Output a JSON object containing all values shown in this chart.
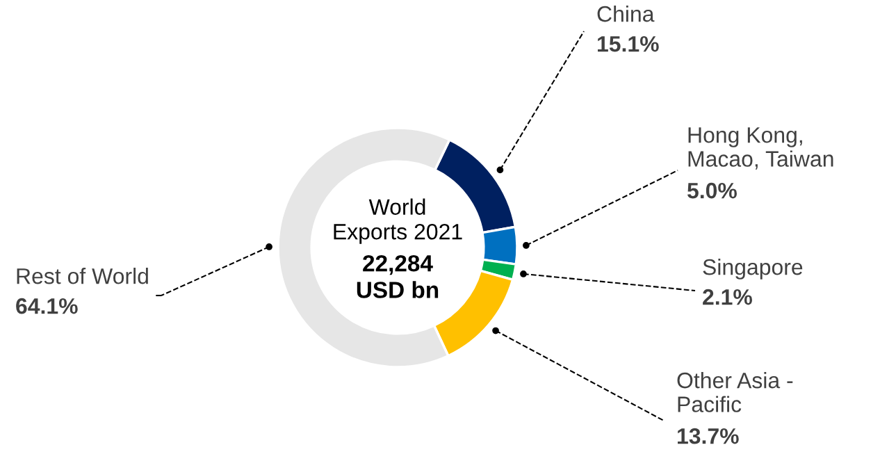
{
  "chart_data": {
    "type": "donut",
    "categories": [
      "China",
      "Hong Kong,\nMacao, Taiwan",
      "Singapore",
      "Other Asia -\nPacific",
      "Rest of World"
    ],
    "values": [
      15.1,
      5.0,
      2.1,
      13.7,
      64.1
    ],
    "colors": [
      "#002060",
      "#0070c0",
      "#00b050",
      "#ffc000",
      "#e6e6e6"
    ],
    "value_labels": [
      "15.1%",
      "5.0%",
      "2.1%",
      "13.7%",
      "64.1%"
    ],
    "annotations": [
      "World\nExports 2021",
      "22,284\nUSD bn"
    ]
  }
}
